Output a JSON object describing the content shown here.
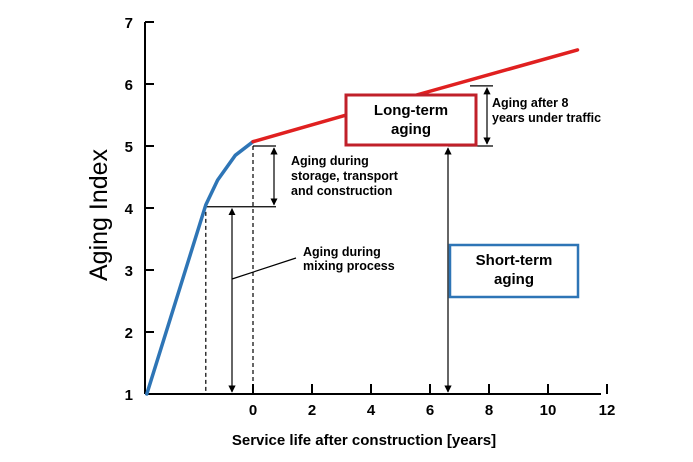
{
  "chart_data": {
    "type": "line",
    "xlabel": "Service life after construction [years]",
    "ylabel": "Aging Index",
    "xlim": [
      -3.6,
      12
    ],
    "ylim": [
      1,
      7
    ],
    "x_ticks": [
      0,
      2,
      4,
      6,
      8,
      10,
      12
    ],
    "y_ticks": [
      1,
      2,
      3,
      4,
      5,
      6,
      7
    ],
    "colors": {
      "short_term": "#2e75b6",
      "long_term": "#e02020"
    },
    "series": [
      {
        "key": "short_term",
        "points": [
          [
            -3.6,
            1
          ],
          [
            -1.6,
            4.05
          ],
          [
            -1.2,
            4.45
          ],
          [
            -0.6,
            4.85
          ],
          [
            0,
            5.07
          ]
        ]
      },
      {
        "key": "long_term",
        "points": [
          [
            0,
            5.07
          ],
          [
            5,
            5.75
          ],
          [
            11,
            6.55
          ]
        ]
      }
    ],
    "annotations": [
      {
        "id": "mixing",
        "lines": [
          "Aging during",
          "mixing process"
        ]
      },
      {
        "id": "storage",
        "lines": [
          "Aging during",
          "storage, transport",
          "and construction"
        ]
      },
      {
        "id": "after8",
        "lines": [
          "Aging after 8",
          "years under traffic"
        ]
      }
    ],
    "boxes": [
      {
        "id": "long_term_box",
        "lines": [
          "Long-term",
          "aging"
        ],
        "border": "#c0202a"
      },
      {
        "id": "short_term_box",
        "lines": [
          "Short-term",
          "aging"
        ],
        "border": "#2e75b6"
      }
    ]
  }
}
